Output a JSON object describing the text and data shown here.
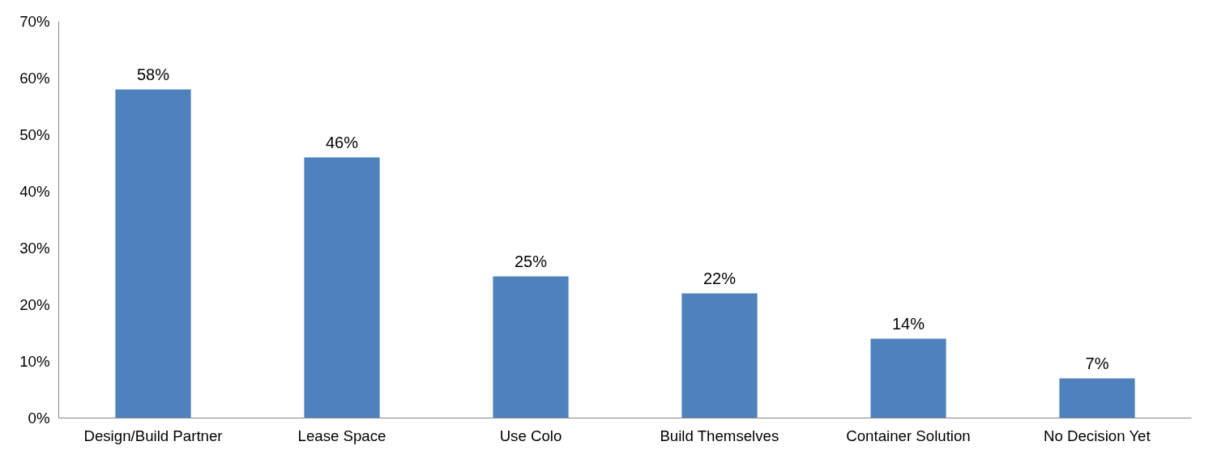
{
  "chart_data": {
    "type": "bar",
    "categories": [
      "Design/Build Partner",
      "Lease Space",
      "Use Colo",
      "Build Themselves",
      "Container Solution",
      "No Decision Yet"
    ],
    "values": [
      58,
      46,
      25,
      22,
      14,
      7
    ],
    "value_labels": [
      "58%",
      "46%",
      "25%",
      "22%",
      "14%",
      "7%"
    ],
    "color": "#4f81bd",
    "ylim": [
      0,
      70
    ],
    "yticks": [
      {
        "value": 0,
        "label": "0%"
      },
      {
        "value": 10,
        "label": "10%"
      },
      {
        "value": 20,
        "label": "20%"
      },
      {
        "value": 30,
        "label": "30%"
      },
      {
        "value": 40,
        "label": "40%"
      },
      {
        "value": 50,
        "label": "50%"
      },
      {
        "value": 60,
        "label": "60%"
      },
      {
        "value": 70,
        "label": "70%"
      }
    ],
    "grid": false
  }
}
